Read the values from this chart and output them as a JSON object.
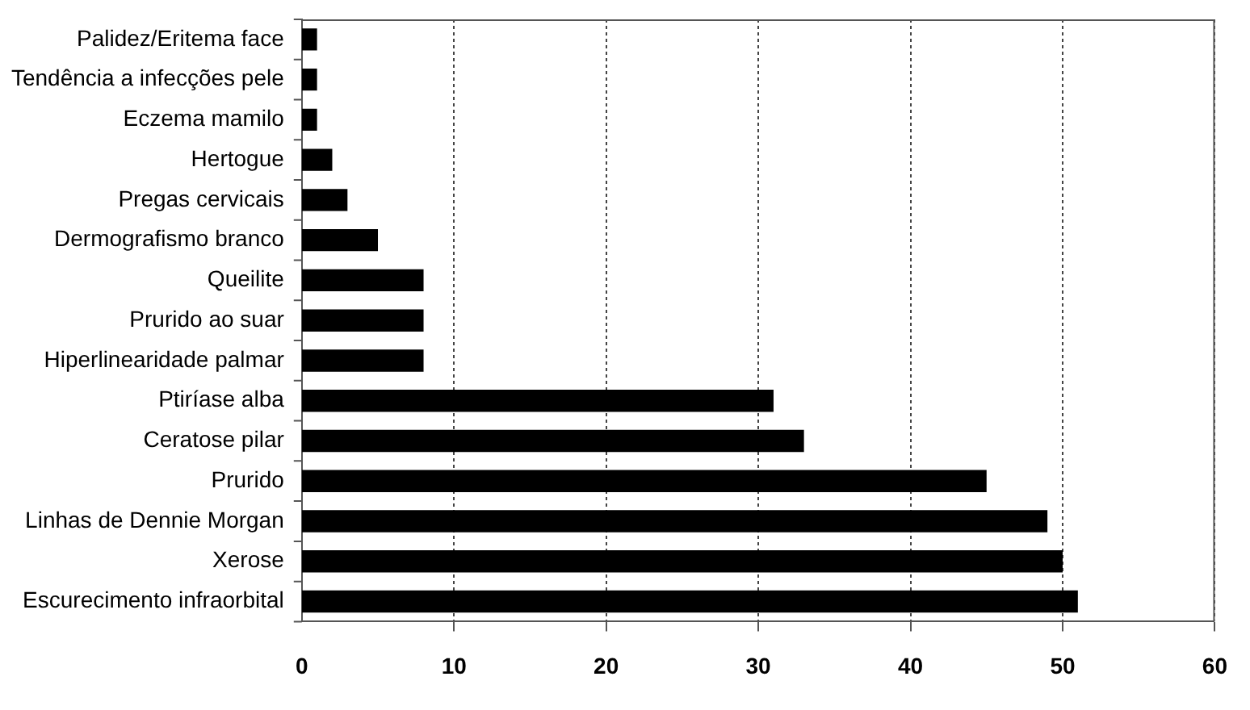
{
  "chart_data": {
    "type": "bar",
    "orientation": "horizontal",
    "categories": [
      "Palidez/Eritema face",
      "Tendência a infecções pele",
      "Eczema mamilo",
      "Hertogue",
      "Pregas cervicais",
      "Dermografismo branco",
      "Queilite",
      "Prurido ao suar",
      "Hiperlinearidade palmar",
      "Ptiríase alba",
      "Ceratose pilar",
      "Prurido",
      "Linhas de Dennie Morgan",
      "Xerose",
      "Escurecimento infraorbital"
    ],
    "values": [
      1,
      1,
      1,
      2,
      3,
      5,
      8,
      8,
      8,
      31,
      33,
      45,
      49,
      50,
      51
    ],
    "color": "#000000",
    "xlim": [
      0,
      60
    ],
    "xticks": [
      0,
      10,
      20,
      30,
      40,
      50,
      60
    ],
    "grid": "x",
    "legend": false
  }
}
